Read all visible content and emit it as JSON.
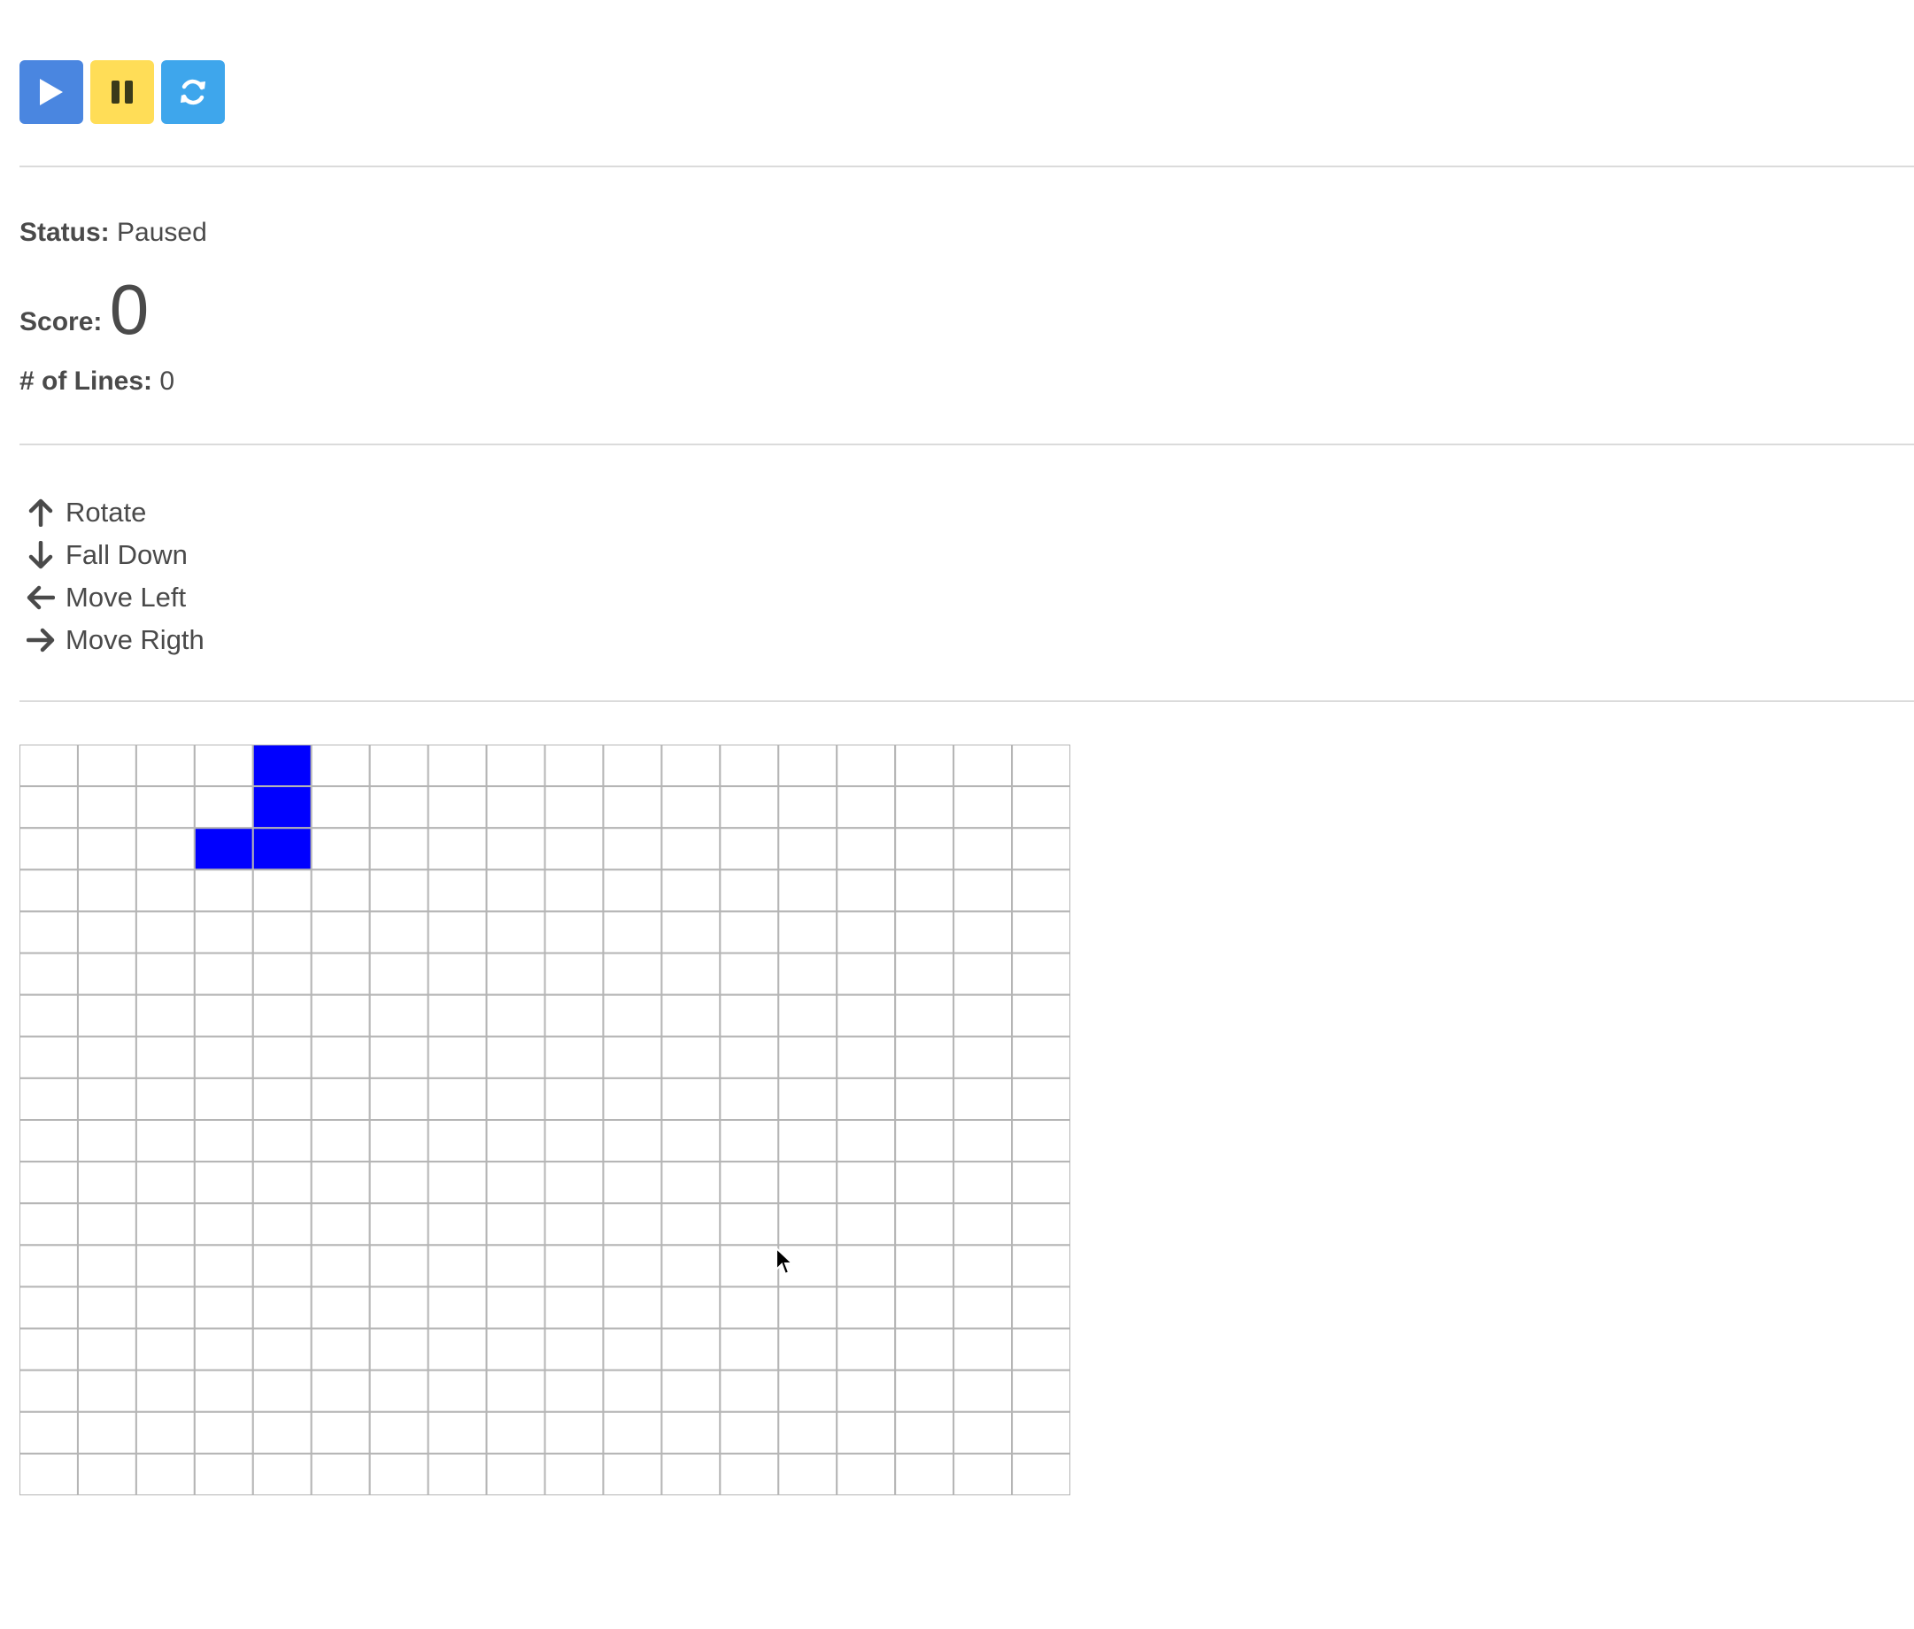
{
  "toolbar": {
    "play_button": {
      "icon": "play-icon",
      "color": "#4a86e0"
    },
    "pause_button": {
      "icon": "pause-icon",
      "color": "#ffdd57"
    },
    "restart_button": {
      "icon": "refresh-icon",
      "color": "#3ea6ec"
    }
  },
  "status": {
    "status_label": "Status:",
    "status_value": "Paused",
    "score_label": "Score:",
    "score_value": "0",
    "lines_label": "# of Lines:",
    "lines_value": "0"
  },
  "controls": [
    {
      "icon": "arrow-up-icon",
      "label": "Rotate"
    },
    {
      "icon": "arrow-down-icon",
      "label": "Fall Down"
    },
    {
      "icon": "arrow-left-icon",
      "label": "Move Left"
    },
    {
      "icon": "arrow-right-icon",
      "label": "Move Rigth"
    }
  ],
  "board": {
    "columns": 18,
    "rows": 18,
    "filled_color": "#0000ff",
    "grid_color": "#b5b5b5",
    "active_piece": [
      {
        "row": 0,
        "col": 4
      },
      {
        "row": 1,
        "col": 4
      },
      {
        "row": 2,
        "col": 3
      },
      {
        "row": 2,
        "col": 4
      }
    ]
  }
}
